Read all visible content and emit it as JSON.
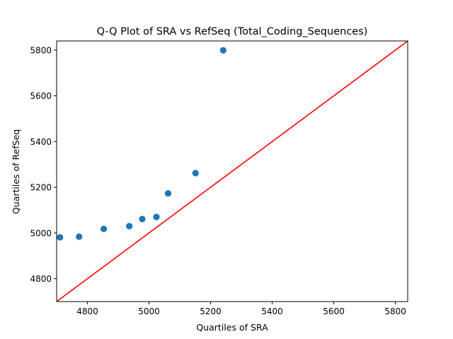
{
  "chart_data": {
    "type": "scatter",
    "title": "Q-Q Plot of SRA vs RefSeq (Total_Coding_Sequences)",
    "xlabel": "Quartiles of SRA",
    "ylabel": "Quartiles of RefSeq",
    "xlim": [
      4700,
      5840
    ],
    "ylim": [
      4700,
      5840
    ],
    "xticks": [
      4800,
      5000,
      5200,
      5400,
      5600,
      5800
    ],
    "yticks": [
      4800,
      5000,
      5200,
      5400,
      5600,
      5800
    ],
    "grid": false,
    "series": [
      {
        "marker_color": "#1f77b4",
        "points": [
          {
            "x": 4711,
            "y": 4981
          },
          {
            "x": 4773,
            "y": 4984
          },
          {
            "x": 4853,
            "y": 5018
          },
          {
            "x": 4936,
            "y": 5030
          },
          {
            "x": 4978,
            "y": 5061
          },
          {
            "x": 5024,
            "y": 5070
          },
          {
            "x": 5062,
            "y": 5173
          },
          {
            "x": 5151,
            "y": 5262
          },
          {
            "x": 5241,
            "y": 5799
          }
        ]
      }
    ],
    "reference_line": {
      "kind": "y=x",
      "color": "#ff0000"
    }
  }
}
